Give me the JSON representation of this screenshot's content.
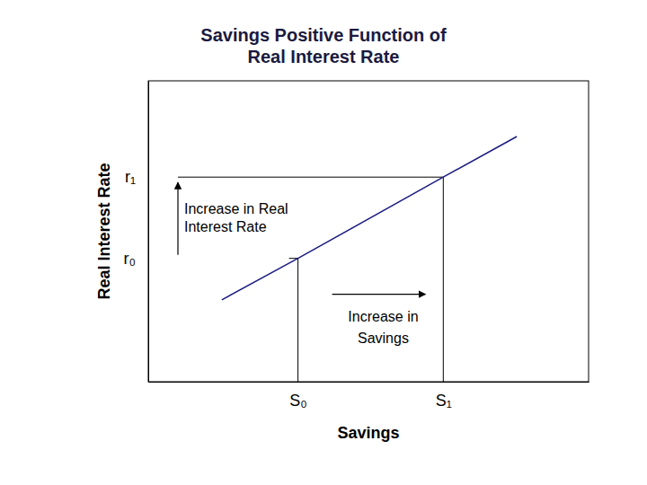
{
  "chart_data": {
    "type": "line",
    "title": "Savings Positive Function of Real Interest Rate",
    "x_label": "Savings",
    "y_label": "Real Interest Rate",
    "x": [
      16.7,
      34,
      67,
      83.7
    ],
    "series": [
      {
        "name": "Savings",
        "color": "#1a1a80",
        "values": [
          27.2,
          41,
          68,
          81.5
        ]
      }
    ],
    "xlim": [
      0,
      100
    ],
    "ylim": [
      0,
      100
    ],
    "xticks": [
      {
        "value": 34,
        "label": "S₀"
      },
      {
        "value": 67,
        "label": "S₁"
      }
    ],
    "yticks": [
      {
        "value": 41,
        "label": "r₀"
      },
      {
        "value": 68,
        "label": "r₁"
      }
    ],
    "annotations": [
      "Increase in Real Interest Rate",
      "Increase in Savings"
    ],
    "grid": false
  }
}
